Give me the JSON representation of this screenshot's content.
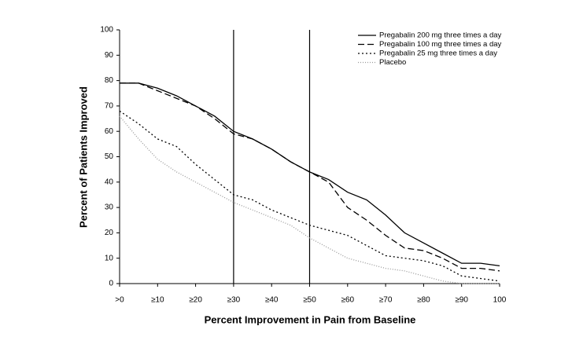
{
  "chart_data": {
    "type": "line",
    "xlabel": "Percent Improvement in Pain from Baseline",
    "ylabel": "Percent of Patients Improved",
    "x": [
      0,
      5,
      10,
      15,
      20,
      25,
      30,
      35,
      40,
      45,
      50,
      55,
      60,
      65,
      70,
      75,
      80,
      85,
      90,
      95,
      100
    ],
    "series": [
      {
        "name": "Pregabalin 200 mg three times a day",
        "color": "#000000",
        "dash": "none",
        "values": [
          79,
          79,
          77,
          74,
          70,
          66,
          60,
          57,
          53,
          48,
          44,
          41,
          36,
          33,
          27,
          20,
          16,
          12,
          8,
          8,
          7
        ]
      },
      {
        "name": "Pregabalin 100 mg three times a day",
        "color": "#000000",
        "dash": "8,4",
        "values": [
          79,
          79,
          76,
          73,
          70,
          65,
          59,
          57,
          53,
          48,
          44,
          40,
          30,
          25,
          19,
          14,
          13,
          10,
          6,
          6,
          5
        ]
      },
      {
        "name": "Pregabalin 25 mg three times a day",
        "color": "#000000",
        "dash": "2,3",
        "values": [
          68,
          63,
          57,
          54,
          47,
          41,
          35,
          33,
          29,
          26,
          23,
          21,
          19,
          15,
          11,
          10,
          9,
          7,
          3,
          2,
          1
        ]
      },
      {
        "name": "Placebo",
        "color": "#999999",
        "dash": "1,2",
        "values": [
          66,
          57,
          49,
          44,
          40,
          36,
          32,
          29,
          26,
          23,
          18,
          14,
          10,
          8,
          6,
          5,
          3,
          1,
          0,
          0,
          0
        ]
      }
    ],
    "xlim": [
      0,
      100
    ],
    "ylim": [
      0,
      100
    ],
    "xticks": [
      {
        "value": 0,
        "label": ">0"
      },
      {
        "value": 10,
        "label": "≥10"
      },
      {
        "value": 20,
        "label": "≥20"
      },
      {
        "value": 30,
        "label": "≥30"
      },
      {
        "value": 40,
        "label": "≥40"
      },
      {
        "value": 50,
        "label": "≥50"
      },
      {
        "value": 60,
        "label": "≥60"
      },
      {
        "value": 70,
        "label": "≥70"
      },
      {
        "value": 80,
        "label": "≥80"
      },
      {
        "value": 90,
        "label": "≥90"
      },
      100
    ],
    "yticks": [
      0,
      10,
      20,
      30,
      40,
      50,
      60,
      70,
      80,
      90,
      100
    ],
    "vlines": [
      30,
      50
    ],
    "legend": "top-right"
  }
}
